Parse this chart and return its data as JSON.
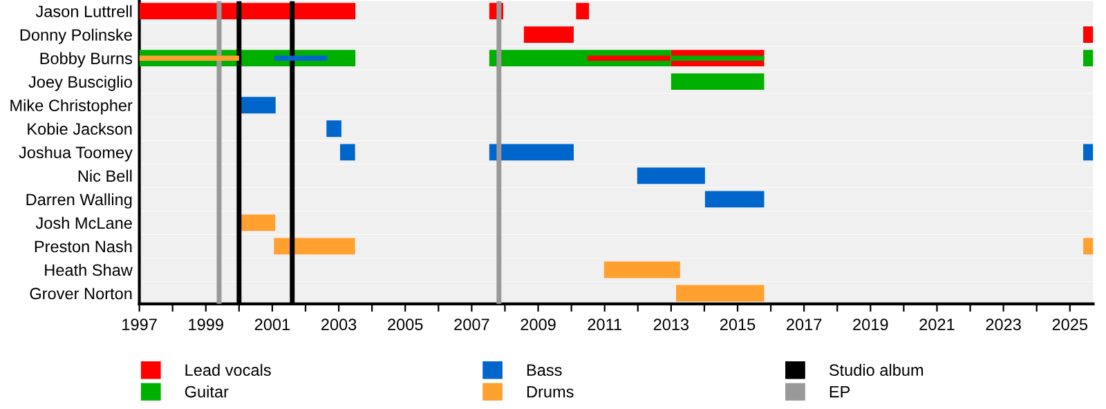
{
  "chart_data": {
    "type": "bar",
    "orientation": "horizontal",
    "categories": [
      "Jason Luttrell",
      "Donny Polinske",
      "Bobby Burns",
      "Joey Busciglio",
      "Mike Christopher",
      "Kobie Jackson",
      "Joshua Toomey",
      "Nic Bell",
      "Darren Walling",
      "Josh McLane",
      "Preston Nash",
      "Heath Shaw",
      "Grover Norton"
    ],
    "series": [
      {
        "name": "Lead vocals",
        "color": "#ff0000",
        "base": [
          1997,
          2008.57,
          null,
          null,
          null,
          null,
          null,
          null,
          null,
          null,
          null,
          null,
          null
        ],
        "values": [
          6.5,
          1.5,
          null,
          null,
          null,
          null,
          null,
          null,
          null,
          null,
          null,
          null,
          null
        ]
      },
      {
        "color": "#ff0000",
        "base": [
          2007.53,
          2025.4,
          2013.0,
          null,
          null,
          null,
          null,
          null,
          null,
          null,
          null,
          null,
          null
        ],
        "values": [
          0.42,
          0.3,
          2.8,
          null,
          null,
          null,
          null,
          null,
          null,
          null,
          null,
          null,
          null
        ]
      },
      {
        "color": "#ff0000",
        "base": [
          2010.14,
          null,
          null,
          null,
          null,
          null,
          null,
          null,
          null,
          null,
          null,
          null,
          null
        ],
        "values": [
          0.39,
          null,
          null,
          null,
          null,
          null,
          null,
          null,
          null,
          null,
          null,
          null,
          null
        ]
      },
      {
        "name": "Guitar",
        "color": "#00b000",
        "base": [
          null,
          null,
          1997,
          2013.0,
          null,
          null,
          null,
          null,
          null,
          null,
          null,
          null,
          null
        ],
        "values": [
          null,
          null,
          6.5,
          2.8,
          null,
          null,
          null,
          null,
          null,
          null,
          null,
          null,
          null
        ]
      },
      {
        "color": "#00b000",
        "base": [
          null,
          null,
          2007.53,
          null,
          null,
          null,
          null,
          null,
          null,
          null,
          null,
          null,
          null
        ],
        "values": [
          null,
          null,
          5.47,
          null,
          null,
          null,
          null,
          null,
          null,
          null,
          null,
          null,
          null
        ]
      },
      {
        "color": "#00b000",
        "base": [
          null,
          null,
          2025.4,
          null,
          null,
          null,
          null,
          null,
          null,
          null,
          null,
          null,
          null
        ],
        "values": [
          null,
          null,
          0.3,
          null,
          null,
          null,
          null,
          null,
          null,
          null,
          null,
          null,
          null
        ]
      },
      {
        "name": "Bass",
        "color": "#0066cc",
        "base": [
          null,
          null,
          null,
          null,
          2000.0,
          2002.63,
          2003.04,
          2011.98,
          2014.02,
          null,
          null,
          null,
          null
        ],
        "values": [
          null,
          null,
          null,
          null,
          1.1,
          0.45,
          0.45,
          2.04,
          1.78,
          null,
          null,
          null,
          null
        ]
      },
      {
        "color": "#0066cc",
        "base": [
          null,
          null,
          null,
          null,
          null,
          null,
          2007.53,
          null,
          null,
          null,
          null,
          null,
          null
        ],
        "values": [
          null,
          null,
          null,
          null,
          null,
          null,
          2.54,
          null,
          null,
          null,
          null,
          null,
          null
        ]
      },
      {
        "color": "#0066cc",
        "base": [
          null,
          null,
          null,
          null,
          null,
          null,
          2025.4,
          null,
          null,
          null,
          null,
          null,
          null
        ],
        "values": [
          null,
          null,
          null,
          null,
          null,
          null,
          0.3,
          null,
          null,
          null,
          null,
          null,
          null
        ]
      },
      {
        "name": "Drums",
        "color": "#ffa02f",
        "base": [
          null,
          null,
          null,
          null,
          null,
          null,
          null,
          null,
          null,
          2000.0,
          2001.05,
          2010.98,
          2013.15
        ],
        "values": [
          null,
          null,
          null,
          null,
          null,
          null,
          null,
          null,
          null,
          1.09,
          2.44,
          2.29,
          2.65
        ]
      },
      {
        "color": "#ffa02f",
        "base": [
          null,
          null,
          null,
          null,
          null,
          null,
          null,
          null,
          null,
          null,
          2025.4,
          null,
          null
        ],
        "values": [
          null,
          null,
          null,
          null,
          null,
          null,
          null,
          null,
          null,
          null,
          0.3,
          null,
          null
        ]
      },
      {
        "color": "#ffa02f",
        "base": [
          null,
          null,
          1997,
          null,
          null,
          null,
          null,
          null,
          null,
          null,
          null,
          null,
          null
        ],
        "values": [
          null,
          null,
          3.0,
          null,
          null,
          null,
          null,
          null,
          null,
          null,
          null,
          null,
          null
        ]
      },
      {
        "color": "#0066cc",
        "base": [
          null,
          null,
          2001.06,
          null,
          null,
          null,
          null,
          null,
          null,
          null,
          null,
          null,
          null
        ],
        "values": [
          null,
          null,
          1.59,
          null,
          null,
          null,
          null,
          null,
          null,
          null,
          null,
          null,
          null
        ]
      },
      {
        "color": "#ff0000",
        "base": [
          null,
          null,
          2010.48,
          null,
          null,
          null,
          null,
          null,
          null,
          null,
          null,
          null,
          null
        ],
        "values": [
          null,
          null,
          2.5,
          null,
          null,
          null,
          null,
          null,
          null,
          null,
          null,
          null,
          null
        ]
      },
      {
        "color": "#00b000",
        "base": [
          null,
          null,
          2013.0,
          null,
          null,
          null,
          null,
          null,
          null,
          null,
          null,
          null,
          null
        ],
        "values": [
          null,
          null,
          2.8,
          null,
          null,
          null,
          null,
          null,
          null,
          null,
          null,
          null,
          null
        ]
      }
    ],
    "ref_lines": [
      {
        "axis": "x",
        "value": 2000.0,
        "label": "Studio album",
        "color": "#000000"
      },
      {
        "axis": "x",
        "value": 2001.6,
        "color": "#000000"
      },
      {
        "axis": "x",
        "value": 1999.4,
        "label": "EP",
        "color": "#999999"
      },
      {
        "axis": "x",
        "value": 2007.82,
        "color": "#999999"
      }
    ],
    "xlim": [
      1997,
      2025.7
    ],
    "xticks": [
      1997,
      {
        "value": 1998,
        "label": null
      },
      1999,
      {
        "value": 2000,
        "label": null
      },
      2001,
      {
        "value": 2002,
        "label": null
      },
      2003,
      {
        "value": 2004,
        "label": null
      },
      2005,
      {
        "value": 2006,
        "label": null
      },
      2007,
      {
        "value": 2008,
        "label": null
      },
      2009,
      {
        "value": 2010,
        "label": null
      },
      2011,
      {
        "value": 2012,
        "label": null
      },
      2013,
      {
        "value": 2014,
        "label": null
      },
      2015,
      {
        "value": 2016,
        "label": null
      },
      2017,
      {
        "value": 2018,
        "label": null
      },
      2019,
      {
        "value": 2020,
        "label": null
      },
      2021,
      {
        "value": 2022,
        "label": null
      },
      2023,
      {
        "value": 2024,
        "label": null
      },
      2025
    ],
    "grid": "y",
    "legend": "bottom"
  }
}
